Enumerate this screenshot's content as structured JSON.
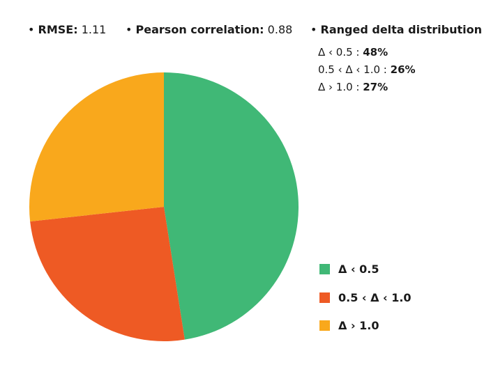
{
  "stats": {
    "rmse_label": "RMSE:",
    "rmse_value": "1.11",
    "pearson_label": "Pearson correlation:",
    "pearson_value": "0.88",
    "dist_title": "Ranged delta distribution"
  },
  "bullet": "•",
  "distribution_lines": [
    {
      "label": "Δ ‹ 0.5 : ",
      "value": "48%"
    },
    {
      "label": "0.5 ‹ Δ ‹ 1.0 : ",
      "value": "26%"
    },
    {
      "label": "Δ › 1.0 : ",
      "value": "27%"
    }
  ],
  "chart_data": {
    "type": "pie",
    "title": "Ranged delta distribution",
    "categories": [
      "Δ ‹ 0.5",
      "0.5 ‹ Δ ‹ 1.0",
      "Δ › 1.0"
    ],
    "values": [
      48,
      26,
      27
    ],
    "colors": [
      "#40b876",
      "#ee5a24",
      "#f9a81c"
    ],
    "start_angle_deg": 0,
    "direction": "clockwise",
    "legend_position": "bottom-right"
  }
}
